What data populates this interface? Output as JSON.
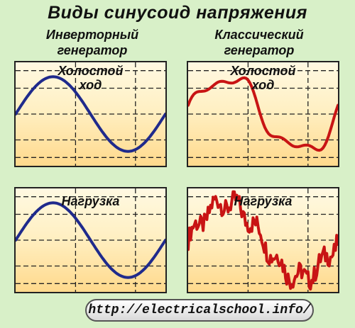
{
  "title": "Виды синусоид напряжения",
  "columns": [
    {
      "heading": [
        "Инверторный",
        "генератор"
      ]
    },
    {
      "heading": [
        "Классический",
        "генератор"
      ]
    }
  ],
  "panels": {
    "top_left": {
      "label": [
        "Холостой",
        "ход"
      ],
      "wave": "clean-sine",
      "color": "#1f2a8c"
    },
    "top_right": {
      "label": [
        "Холостой",
        "ход"
      ],
      "wave": "distorted-sine",
      "color": "#c81414"
    },
    "bottom_left": {
      "label": [
        "Нагрузка"
      ],
      "wave": "clean-sine",
      "color": "#1f2a8c"
    },
    "bottom_right": {
      "label": [
        "Нагрузка"
      ],
      "wave": "noisy-sine",
      "color": "#c81414"
    }
  },
  "footer": {
    "url": "http://electricalschool.info/"
  }
}
